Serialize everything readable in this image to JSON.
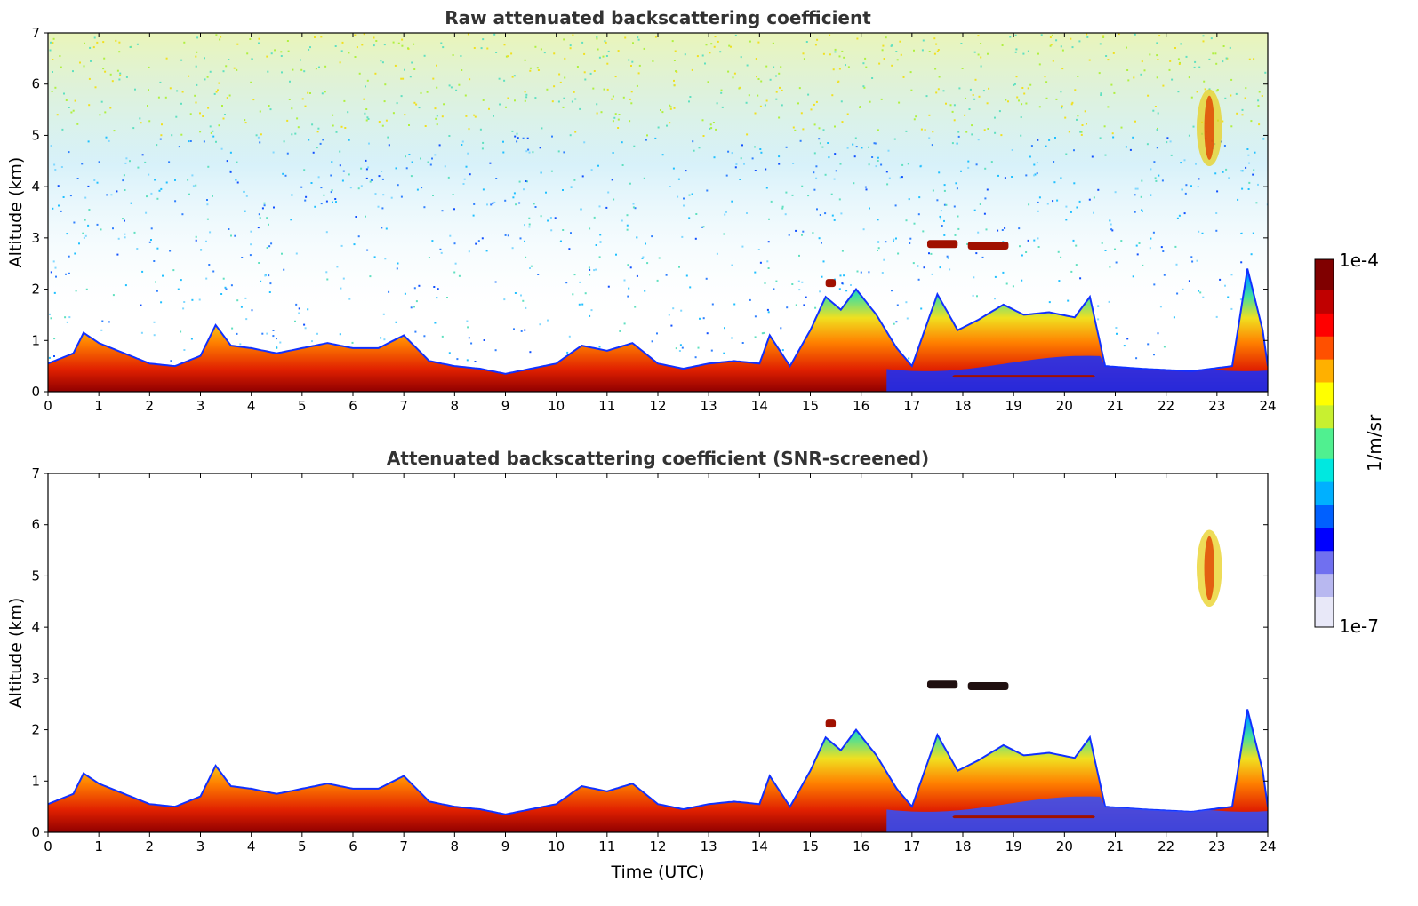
{
  "chart_data": [
    {
      "type": "heatmap",
      "title": "Raw attenuated backscattering coefficient",
      "xlabel": "",
      "ylabel": "Altitude (km)",
      "xlim": [
        0,
        24
      ],
      "ylim": [
        0,
        7
      ],
      "xticks": [
        "0",
        "1",
        "2",
        "3",
        "4",
        "5",
        "6",
        "7",
        "8",
        "9",
        "10",
        "11",
        "12",
        "13",
        "14",
        "15",
        "16",
        "17",
        "18",
        "19",
        "20",
        "21",
        "22",
        "23",
        "24"
      ],
      "yticks": [
        "0",
        "1",
        "2",
        "3",
        "4",
        "5",
        "6",
        "7"
      ],
      "colormap": "jet",
      "noise": true,
      "boundary_layer_top_km": [
        [
          0,
          0.55
        ],
        [
          0.5,
          0.75
        ],
        [
          0.7,
          1.15
        ],
        [
          1.0,
          0.95
        ],
        [
          1.5,
          0.75
        ],
        [
          2.0,
          0.55
        ],
        [
          2.5,
          0.5
        ],
        [
          3.0,
          0.7
        ],
        [
          3.3,
          1.3
        ],
        [
          3.6,
          0.9
        ],
        [
          4.0,
          0.85
        ],
        [
          4.5,
          0.75
        ],
        [
          5.0,
          0.85
        ],
        [
          5.5,
          0.95
        ],
        [
          6.0,
          0.85
        ],
        [
          6.5,
          0.85
        ],
        [
          7.0,
          1.1
        ],
        [
          7.5,
          0.6
        ],
        [
          8.0,
          0.5
        ],
        [
          8.5,
          0.45
        ],
        [
          9.0,
          0.35
        ],
        [
          9.5,
          0.45
        ],
        [
          10.0,
          0.55
        ],
        [
          10.5,
          0.9
        ],
        [
          11.0,
          0.8
        ],
        [
          11.5,
          0.95
        ],
        [
          12.0,
          0.55
        ],
        [
          12.5,
          0.45
        ],
        [
          13.0,
          0.55
        ],
        [
          13.5,
          0.6
        ],
        [
          14.0,
          0.55
        ],
        [
          14.2,
          1.1
        ],
        [
          14.6,
          0.5
        ],
        [
          15.0,
          1.2
        ],
        [
          15.3,
          1.85
        ],
        [
          15.6,
          1.6
        ],
        [
          15.9,
          2.0
        ],
        [
          16.3,
          1.5
        ],
        [
          16.7,
          0.85
        ],
        [
          17.0,
          0.5
        ],
        [
          17.5,
          1.9
        ],
        [
          17.9,
          1.2
        ],
        [
          18.3,
          1.4
        ],
        [
          18.8,
          1.7
        ],
        [
          19.2,
          1.5
        ],
        [
          19.7,
          1.55
        ],
        [
          20.2,
          1.45
        ],
        [
          20.5,
          1.85
        ],
        [
          20.8,
          0.5
        ],
        [
          21.5,
          0.45
        ],
        [
          22.5,
          0.4
        ],
        [
          23.3,
          0.5
        ],
        [
          23.6,
          2.4
        ],
        [
          23.9,
          1.2
        ],
        [
          24,
          0.5
        ]
      ],
      "cloud_layers": [
        {
          "x": [
            17.3,
            17.9
          ],
          "altitude_km": 2.88
        },
        {
          "x": [
            18.1,
            18.9
          ],
          "altitude_km": 2.85
        },
        {
          "x": [
            15.3,
            15.5
          ],
          "altitude_km": 2.12
        },
        {
          "x": [
            22.6,
            23.1
          ],
          "altitude_km": [
            4.4,
            5.9
          ]
        },
        {
          "x": [
            17.8,
            20.6
          ],
          "altitude_km": 0.3
        }
      ]
    },
    {
      "type": "heatmap",
      "title": "Attenuated backscattering coefficient (SNR-screened)",
      "xlabel": "Time (UTC)",
      "ylabel": "Altitude (km)",
      "xlim": [
        0,
        24
      ],
      "ylim": [
        0,
        7
      ],
      "xticks": [
        "0",
        "1",
        "2",
        "3",
        "4",
        "5",
        "6",
        "7",
        "8",
        "9",
        "10",
        "11",
        "12",
        "13",
        "14",
        "15",
        "16",
        "17",
        "18",
        "19",
        "20",
        "21",
        "22",
        "23",
        "24"
      ],
      "yticks": [
        "0",
        "1",
        "2",
        "3",
        "4",
        "5",
        "6",
        "7"
      ],
      "colormap": "jet",
      "noise": false
    }
  ],
  "colorbar": {
    "label": "1/m/sr",
    "max_label": "1e-4",
    "min_label": "1e-7",
    "colors": [
      "#e8e8f8",
      "#b8b8f0",
      "#7070f0",
      "#0000ff",
      "#0060ff",
      "#00b0ff",
      "#00e8e0",
      "#50f090",
      "#c8f030",
      "#ffff00",
      "#ffb000",
      "#ff5000",
      "#ff0000",
      "#c00000",
      "#800000"
    ]
  }
}
